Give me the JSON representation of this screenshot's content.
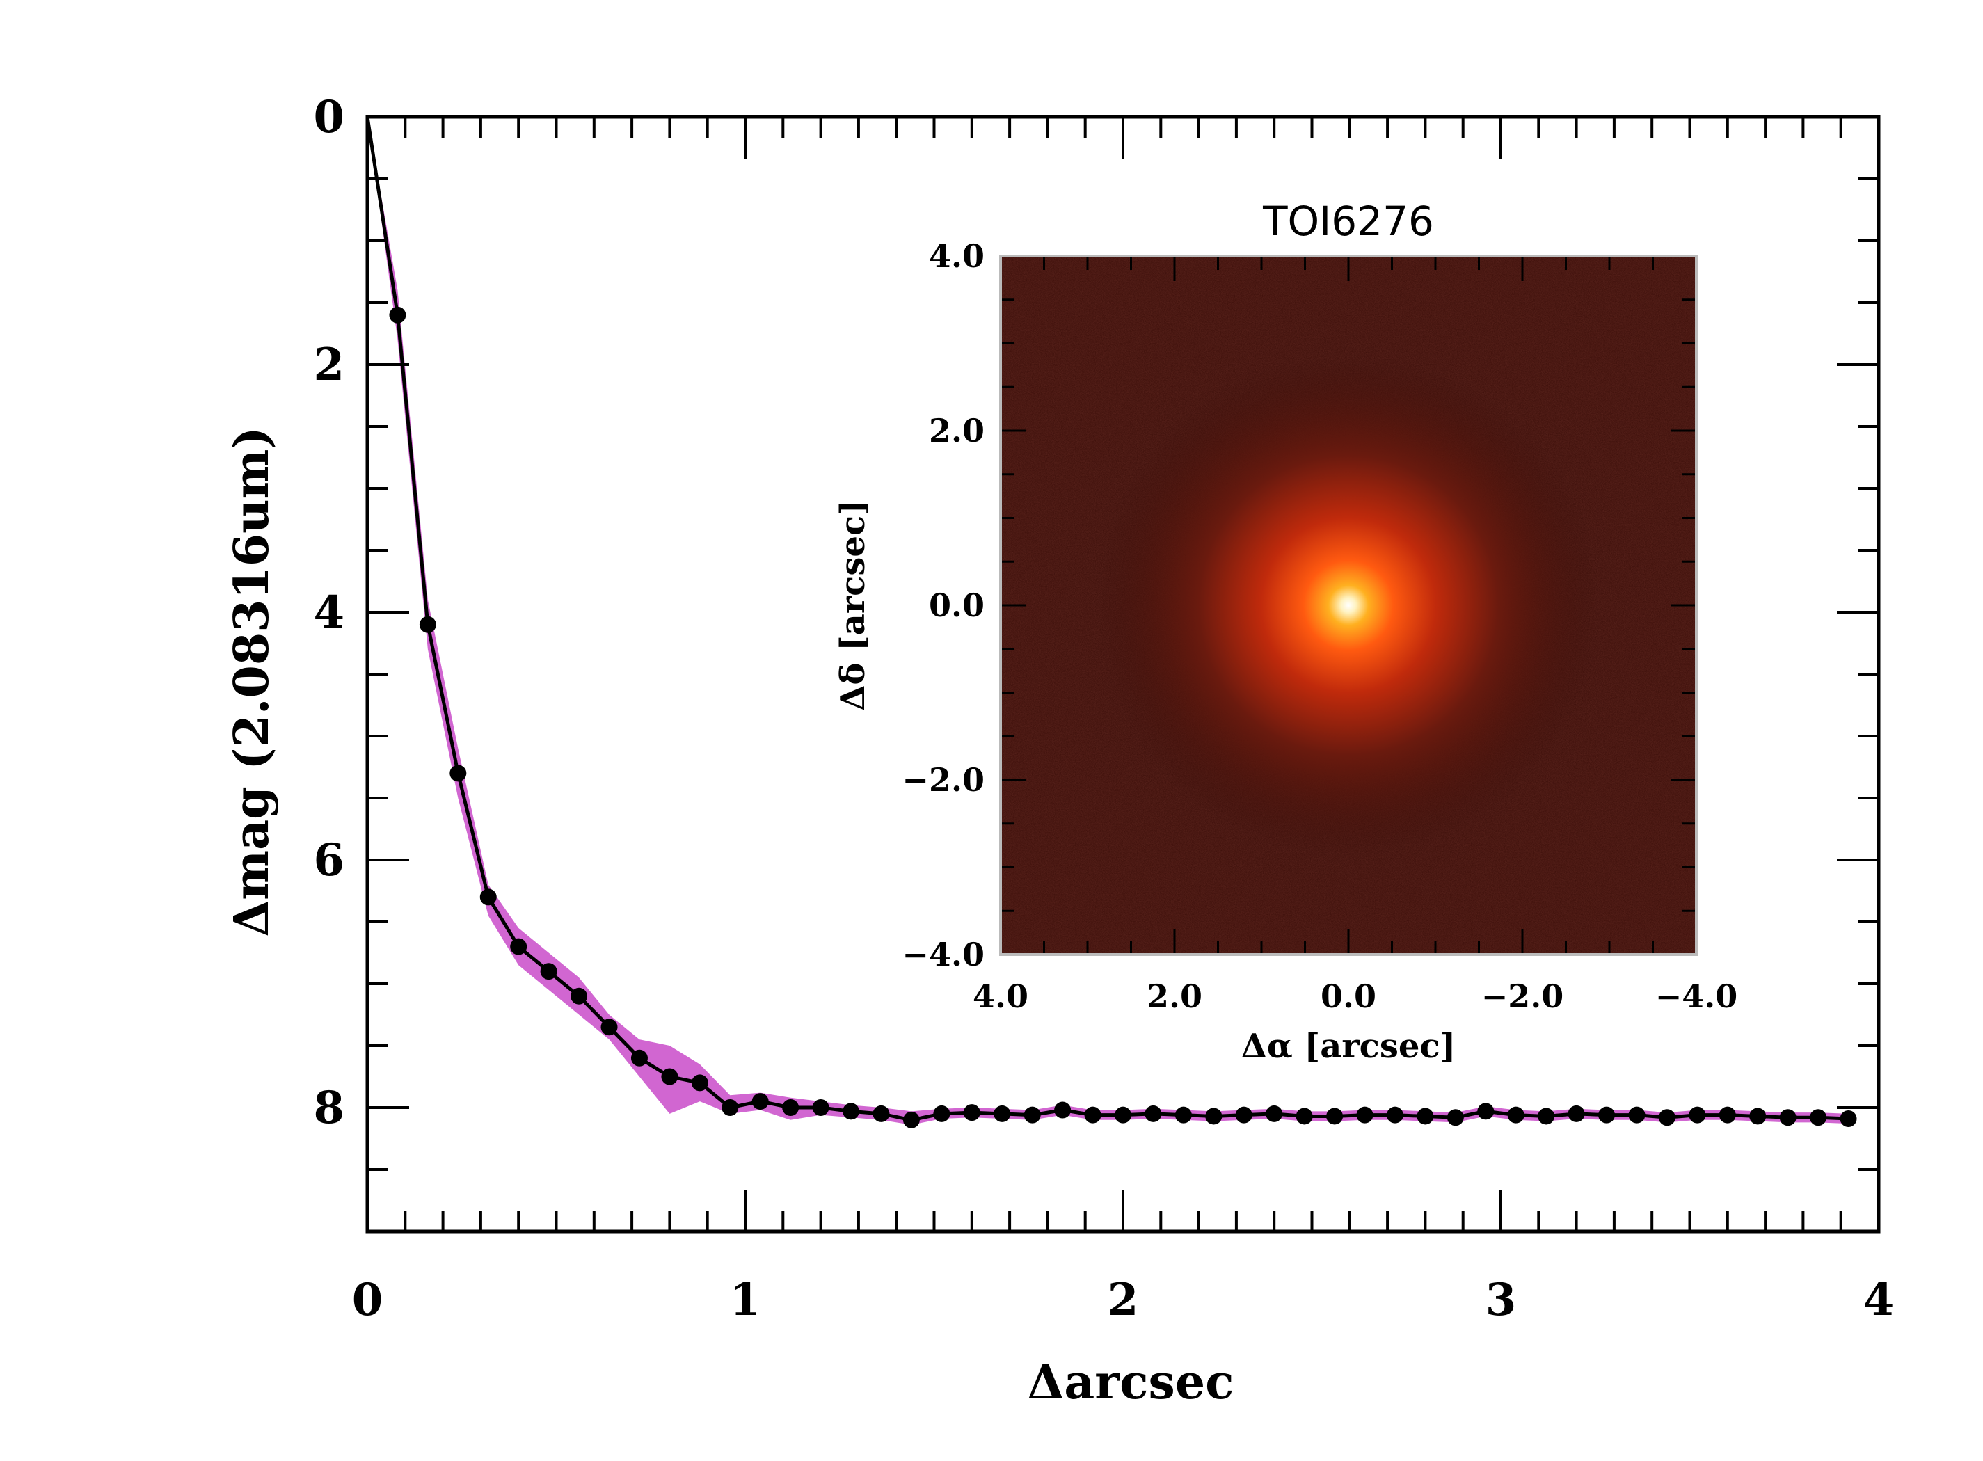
{
  "chart_data": [
    {
      "type": "line",
      "xlabel": "Δarcsec",
      "ylabel": "Δmag (2.08316um)",
      "xlim": [
        0,
        4
      ],
      "ylim": [
        9,
        0
      ],
      "y_inverted": true,
      "xticks": [
        "0",
        "1",
        "2",
        "3",
        "4"
      ],
      "yticks": [
        "0",
        "2",
        "4",
        "6",
        "8"
      ],
      "band_color": "#cc55cc",
      "line_color": "#000000",
      "series": [
        {
          "x": [
            0,
            0.08,
            0.16,
            0.24,
            0.32,
            0.4,
            0.48,
            0.56,
            0.64,
            0.72,
            0.8,
            0.88,
            0.96,
            1.04,
            1.12,
            1.2,
            1.28,
            1.36,
            1.44,
            1.52,
            1.6,
            1.68,
            1.76,
            1.84,
            1.92,
            2.0,
            2.08,
            2.16,
            2.24,
            2.32,
            2.4,
            2.48,
            2.56,
            2.64,
            2.72,
            2.8,
            2.88,
            2.96,
            3.04,
            3.12,
            3.2,
            3.28,
            3.36,
            3.44,
            3.52,
            3.6,
            3.68,
            3.76,
            3.84,
            3.92
          ],
          "y": [
            0,
            1.6,
            4.1,
            5.3,
            6.3,
            6.7,
            6.9,
            7.1,
            7.35,
            7.6,
            7.75,
            7.8,
            8.0,
            7.95,
            8.0,
            8.0,
            8.03,
            8.05,
            8.1,
            8.05,
            8.04,
            8.05,
            8.06,
            8.02,
            8.06,
            8.06,
            8.05,
            8.06,
            8.07,
            8.06,
            8.05,
            8.07,
            8.07,
            8.06,
            8.06,
            8.07,
            8.08,
            8.03,
            8.06,
            8.07,
            8.05,
            8.06,
            8.06,
            8.08,
            8.06,
            8.06,
            8.07,
            8.08,
            8.08,
            8.09
          ],
          "band_low": [
            0,
            1.4,
            3.9,
            5.1,
            6.2,
            6.55,
            6.75,
            6.95,
            7.25,
            7.45,
            7.5,
            7.65,
            7.9,
            7.88,
            7.92,
            7.95,
            7.98,
            8.0,
            8.03,
            8.01,
            8.0,
            8.01,
            8.02,
            7.98,
            8.02,
            8.02,
            8.01,
            8.02,
            8.03,
            8.02,
            8.01,
            8.03,
            8.03,
            8.02,
            8.02,
            8.03,
            8.04,
            7.99,
            8.02,
            8.03,
            8.01,
            8.02,
            8.02,
            8.04,
            8.02,
            8.02,
            8.03,
            8.04,
            8.04,
            8.05
          ],
          "band_high": [
            0,
            1.8,
            4.3,
            5.5,
            6.45,
            6.85,
            7.05,
            7.25,
            7.45,
            7.75,
            8.05,
            7.95,
            8.05,
            8.02,
            8.1,
            8.06,
            8.08,
            8.1,
            8.14,
            8.09,
            8.08,
            8.09,
            8.1,
            8.06,
            8.1,
            8.1,
            8.09,
            8.1,
            8.11,
            8.1,
            8.09,
            8.11,
            8.11,
            8.1,
            8.1,
            8.11,
            8.12,
            8.07,
            8.1,
            8.11,
            8.09,
            8.1,
            8.1,
            8.12,
            8.1,
            8.1,
            8.11,
            8.12,
            8.12,
            8.13
          ]
        }
      ]
    },
    {
      "type": "heatmap",
      "title": "TOI6276",
      "xlabel": "Δα [arcsec]",
      "ylabel": "Δδ [arcsec]",
      "xlim": [
        4.0,
        -4.0
      ],
      "ylim": [
        -4.0,
        4.0
      ],
      "xticks": [
        "4.0",
        "2.0",
        "0.0",
        "−2.0",
        "−4.0"
      ],
      "yticks": [
        "4.0",
        "2.0",
        "0.0",
        "−2.0",
        "−4.0"
      ],
      "colormap": "red-temperature",
      "source_position": [
        0.0,
        0.0
      ],
      "background_color": "#3a0d08"
    }
  ]
}
